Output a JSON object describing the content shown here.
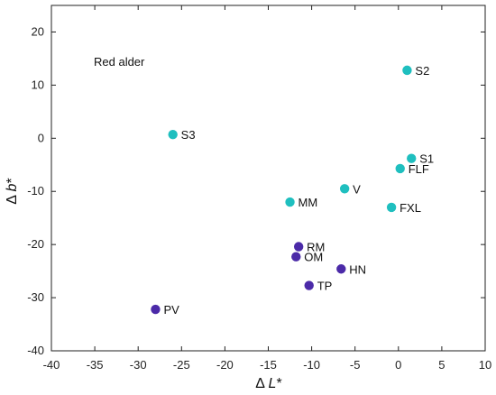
{
  "chart_data": {
    "type": "scatter",
    "title": "",
    "xlabel_parts": {
      "prefix": "Δ ",
      "italic": "L",
      "suffix": "*"
    },
    "ylabel_parts": {
      "prefix": "Δ ",
      "italic": "b",
      "suffix": "*"
    },
    "xlim": [
      -40,
      10
    ],
    "ylim": [
      -40,
      25
    ],
    "xticks": [
      -40,
      -35,
      -30,
      -25,
      -20,
      -15,
      -10,
      -5,
      0,
      5,
      10
    ],
    "yticks": [
      -40,
      -30,
      -20,
      -10,
      0,
      10,
      20
    ],
    "grid": false,
    "legend": "none",
    "annotation": "Red alder",
    "series": [
      {
        "color": "#1fbfbf",
        "points": [
          {
            "label": "S2",
            "x": 1.0,
            "y": 12.8
          },
          {
            "label": "S3",
            "x": -26.0,
            "y": 0.7
          },
          {
            "label": "S1",
            "x": 1.5,
            "y": -3.8
          },
          {
            "label": "FLF",
            "x": 0.2,
            "y": -5.7
          },
          {
            "label": "V",
            "x": -6.2,
            "y": -9.5
          },
          {
            "label": "MM",
            "x": -12.5,
            "y": -12.0
          },
          {
            "label": "FXL",
            "x": -0.8,
            "y": -13.0
          }
        ]
      },
      {
        "color": "#4b2aa8",
        "points": [
          {
            "label": "RM",
            "x": -11.5,
            "y": -20.4
          },
          {
            "label": "OM",
            "x": -11.8,
            "y": -22.3
          },
          {
            "label": "HN",
            "x": -6.6,
            "y": -24.6
          },
          {
            "label": "TP",
            "x": -10.3,
            "y": -27.7
          },
          {
            "label": "PV",
            "x": -28.0,
            "y": -32.2
          }
        ]
      }
    ]
  }
}
